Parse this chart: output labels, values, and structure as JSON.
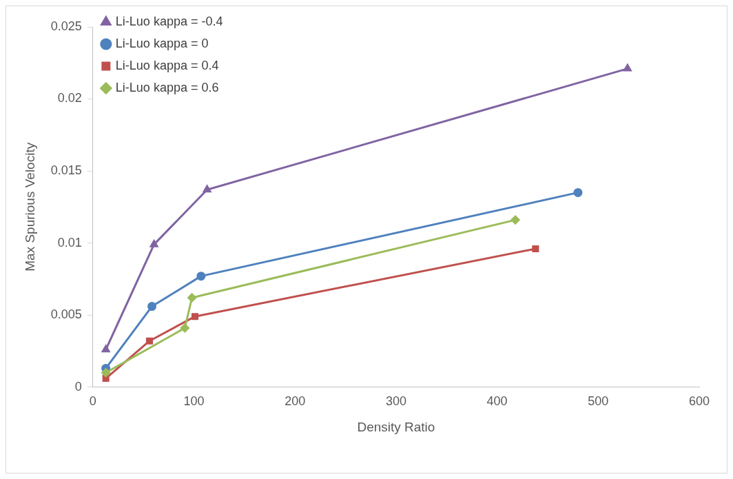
{
  "chart_data": {
    "type": "line",
    "xlabel": "Density Ratio",
    "ylabel": "Max Spurious Velocity",
    "xlim": [
      0,
      600
    ],
    "xticks": [
      0,
      100,
      200,
      300,
      400,
      500,
      600
    ],
    "ylim": [
      0,
      0.025
    ],
    "yticks": [
      0,
      0.005,
      0.01,
      0.015,
      0.02,
      0.025
    ],
    "grid": false,
    "legend": "top left",
    "line_style": "solid",
    "series": [
      {
        "name": "Li-Luo kappa = -0.4",
        "color": "#8064a2",
        "marker": "triangle",
        "x": [
          12.8,
          60.5,
          113,
          529
        ],
        "values": [
          0.0026,
          0.0099,
          0.0137,
          0.0221
        ]
      },
      {
        "name": "Li-Luo kappa = 0",
        "color": "#4f81bd",
        "marker": "circle",
        "x": [
          12.8,
          58.4,
          107,
          480
        ],
        "values": [
          0.0013,
          0.0056,
          0.0077,
          0.0135
        ]
      },
      {
        "name": "Li-Luo kappa = 0.4",
        "color": "#c0504d",
        "marker": "square",
        "x": [
          12.8,
          56,
          101,
          438
        ],
        "values": [
          0.0006,
          0.0032,
          0.0049,
          0.0096
        ]
      },
      {
        "name": "Li-Luo kappa = 0.6",
        "color": "#9bbb59",
        "marker": "diamond",
        "x": [
          12.8,
          91,
          98,
          418
        ],
        "values": [
          0.001,
          0.0041,
          0.0062,
          0.0116
        ]
      }
    ]
  }
}
